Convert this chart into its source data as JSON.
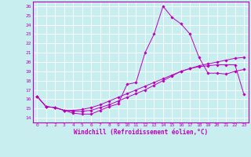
{
  "xlabel": "Windchill (Refroidissement éolien,°C)",
  "xlim": [
    -0.5,
    23.5
  ],
  "ylim": [
    13.5,
    26.5
  ],
  "yticks": [
    14,
    15,
    16,
    17,
    18,
    19,
    20,
    21,
    22,
    23,
    24,
    25,
    26
  ],
  "xticks": [
    0,
    1,
    2,
    3,
    4,
    5,
    6,
    7,
    8,
    9,
    10,
    11,
    12,
    13,
    14,
    15,
    16,
    17,
    18,
    19,
    20,
    21,
    22,
    23
  ],
  "line_color": "#bb00bb",
  "bg_color": "#c8eef0",
  "grid_color": "#ffffff",
  "lines": [
    {
      "x": [
        0,
        1,
        2,
        3,
        4,
        5,
        6,
        7,
        8,
        9,
        10,
        11,
        12,
        13,
        14,
        15,
        16,
        17,
        18,
        19,
        20,
        21,
        22,
        23
      ],
      "y": [
        16.3,
        15.2,
        15.1,
        14.8,
        14.5,
        14.4,
        14.4,
        14.8,
        15.2,
        15.5,
        17.6,
        17.8,
        21.0,
        23.0,
        26.0,
        24.8,
        24.1,
        23.0,
        20.5,
        18.8,
        18.8,
        18.7,
        19.0,
        19.2
      ]
    },
    {
      "x": [
        0,
        1,
        2,
        3,
        4,
        5,
        6,
        7,
        8,
        9,
        10,
        11,
        12,
        13,
        14,
        15,
        16,
        17,
        18,
        19,
        20,
        21,
        22,
        23
      ],
      "y": [
        16.3,
        15.2,
        15.1,
        14.8,
        14.8,
        14.9,
        15.1,
        15.4,
        15.8,
        16.2,
        16.6,
        17.0,
        17.4,
        17.8,
        18.2,
        18.6,
        19.0,
        19.3,
        19.6,
        19.8,
        20.0,
        20.2,
        20.4,
        20.5
      ]
    },
    {
      "x": [
        0,
        1,
        2,
        3,
        4,
        5,
        6,
        7,
        8,
        9,
        10,
        11,
        12,
        13,
        14,
        15,
        16,
        17,
        18,
        19,
        20,
        21,
        22,
        23
      ],
      "y": [
        16.3,
        15.2,
        15.1,
        14.8,
        14.7,
        14.7,
        14.8,
        15.1,
        15.4,
        15.8,
        16.2,
        16.6,
        17.0,
        17.5,
        18.0,
        18.5,
        19.0,
        19.3,
        19.5,
        19.6,
        19.7,
        19.7,
        19.7,
        16.5
      ]
    }
  ]
}
